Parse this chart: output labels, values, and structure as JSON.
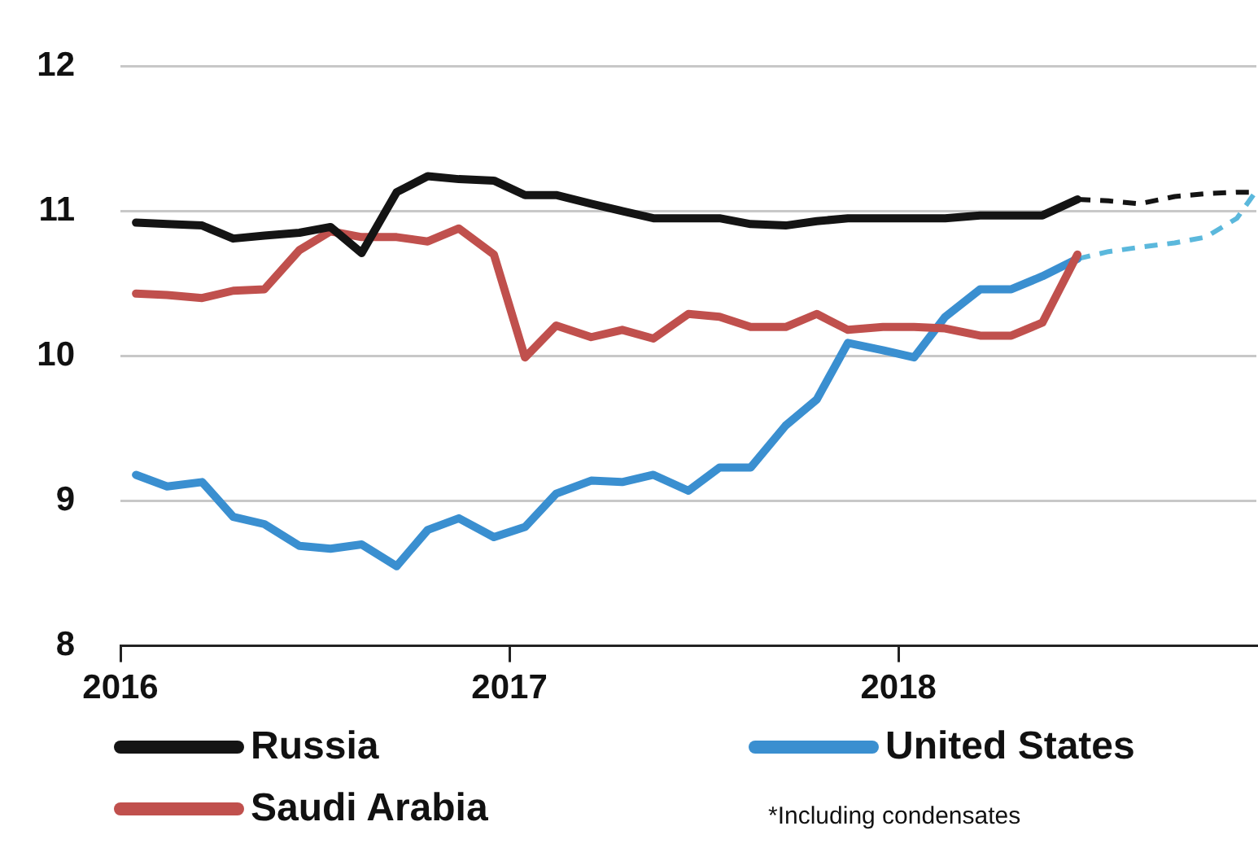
{
  "chart_data": {
    "type": "line",
    "x": [
      2016.04,
      2016.12,
      2016.21,
      2016.29,
      2016.37,
      2016.46,
      2016.54,
      2016.62,
      2016.71,
      2016.79,
      2016.87,
      2016.96,
      2017.04,
      2017.12,
      2017.21,
      2017.29,
      2017.37,
      2017.46,
      2017.54,
      2017.62,
      2017.71,
      2017.79,
      2017.87,
      2017.96,
      2018.04,
      2018.12,
      2018.21,
      2018.29,
      2018.37,
      2018.46
    ],
    "series": [
      {
        "name": "Russia",
        "color": "#141414",
        "values": [
          10.92,
          10.91,
          10.9,
          10.81,
          10.83,
          10.85,
          10.89,
          10.71,
          11.13,
          11.24,
          11.22,
          11.21,
          11.11,
          11.11,
          11.05,
          11.0,
          10.95,
          10.95,
          10.95,
          10.91,
          10.9,
          10.93,
          10.95,
          10.95,
          10.95,
          10.95,
          10.97,
          10.97,
          10.97,
          11.08
        ]
      },
      {
        "name": "Saudi Arabia",
        "color": "#c0504d",
        "values": [
          10.43,
          10.42,
          10.4,
          10.45,
          10.46,
          10.73,
          10.86,
          10.82,
          10.82,
          10.79,
          10.88,
          10.7,
          9.99,
          10.21,
          10.13,
          10.18,
          10.12,
          10.29,
          10.27,
          10.2,
          10.2,
          10.29,
          10.18,
          10.2,
          10.2,
          10.19,
          10.14,
          10.14,
          10.23,
          10.7
        ]
      },
      {
        "name": "United States",
        "color": "#3a8fd0",
        "values": [
          9.18,
          9.1,
          9.13,
          8.89,
          8.84,
          8.69,
          8.67,
          8.7,
          8.55,
          8.8,
          8.88,
          8.75,
          8.82,
          9.05,
          9.14,
          9.13,
          9.18,
          9.07,
          9.23,
          9.23,
          9.52,
          9.7,
          10.09,
          10.04,
          9.99,
          10.27,
          10.46,
          10.46,
          10.55,
          10.67
        ]
      },
      {
        "color": "#141414",
        "line_style": "dashed",
        "x": [
          2018.46,
          2018.54,
          2018.62,
          2018.71,
          2018.79,
          2018.87,
          2018.92
        ],
        "values": [
          11.08,
          11.07,
          11.05,
          11.1,
          11.12,
          11.13,
          11.13
        ]
      },
      {
        "color": "#5bb8dc",
        "line_style": "dashed",
        "x": [
          2018.46,
          2018.54,
          2018.62,
          2018.71,
          2018.79,
          2018.87,
          2018.92
        ],
        "values": [
          10.67,
          10.72,
          10.75,
          10.78,
          10.82,
          10.95,
          11.14
        ]
      }
    ],
    "xlim": [
      2016,
      2018.92
    ],
    "xticks": [
      2016,
      2017,
      2018
    ],
    "ylim": [
      8,
      12
    ],
    "yticks": [
      8,
      9,
      10,
      11,
      12
    ],
    "grid": "y",
    "legend": "bottom",
    "marker": "none",
    "line_style": "solid",
    "annotations": [
      "*Including condensates"
    ]
  }
}
